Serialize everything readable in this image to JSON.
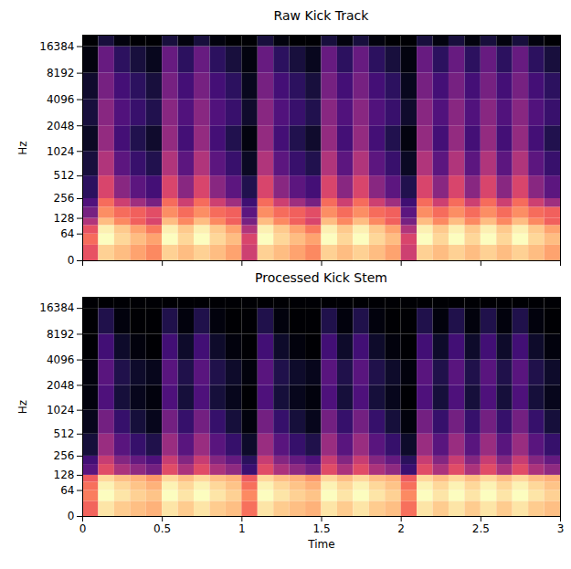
{
  "chart_data": [
    {
      "type": "heatmap",
      "title": "Raw Kick Track",
      "ylabel": "Hz",
      "log": "y",
      "color": "magma",
      "tick_labels": "y",
      "xlim": [
        0,
        3
      ],
      "xticks": [
        0,
        0.5,
        1,
        1.5,
        2,
        2.5,
        3
      ],
      "ylim": [
        0,
        22050
      ],
      "yticks": [
        0,
        64,
        128,
        256,
        512,
        1024,
        2048,
        4096,
        8192,
        16384
      ],
      "x_edges": [
        0,
        0.1,
        0.2,
        0.3,
        0.4,
        0.5,
        0.6,
        0.7,
        0.8,
        0.9,
        1.0,
        1.1,
        1.2,
        1.3,
        1.4,
        1.5,
        1.6,
        1.7,
        1.8,
        1.9,
        2.0,
        2.1,
        2.2,
        2.3,
        2.4,
        2.5,
        2.6,
        2.7,
        2.8,
        2.9,
        3.0
      ],
      "y_edges": [
        0,
        32,
        64,
        96,
        128,
        192,
        256,
        512,
        1024,
        2048,
        4096,
        8192,
        16384,
        22050
      ],
      "cells": [
        [
          -35,
          -15,
          -18,
          -22,
          -26,
          -15,
          -18,
          -15,
          -18,
          -22,
          -40,
          -15,
          -18,
          -22,
          -26,
          -15,
          -18,
          -15,
          -18,
          -22,
          -40,
          -15,
          -18,
          -15,
          -18,
          -15,
          -18,
          -15,
          -18,
          -22
        ],
        [
          -30,
          -8,
          -14,
          -18,
          -22,
          -8,
          -14,
          -8,
          -14,
          -18,
          -38,
          -8,
          -14,
          -18,
          -22,
          -8,
          -14,
          -8,
          -14,
          -18,
          -38,
          -8,
          -14,
          -8,
          -14,
          -8,
          -14,
          -8,
          -14,
          -18
        ],
        [
          -35,
          -10,
          -16,
          -22,
          -28,
          -10,
          -16,
          -10,
          -16,
          -22,
          -45,
          -10,
          -16,
          -22,
          -28,
          -10,
          -16,
          -10,
          -16,
          -22,
          -45,
          -10,
          -16,
          -10,
          -16,
          -10,
          -16,
          -10,
          -16,
          -22
        ],
        [
          -45,
          -18,
          -26,
          -32,
          -38,
          -18,
          -26,
          -18,
          -26,
          -32,
          -55,
          -18,
          -26,
          -32,
          -38,
          -18,
          -26,
          -18,
          -26,
          -32,
          -55,
          -18,
          -26,
          -18,
          -26,
          -18,
          -26,
          -18,
          -26,
          -32
        ],
        [
          -55,
          -25,
          -30,
          -32,
          -36,
          -25,
          -30,
          -25,
          -30,
          -32,
          -60,
          -25,
          -30,
          -32,
          -36,
          -25,
          -30,
          -25,
          -30,
          -32,
          -60,
          -25,
          -30,
          -25,
          -30,
          -25,
          -30,
          -25,
          -30,
          -32
        ],
        [
          -62,
          -30,
          -40,
          -48,
          -55,
          -30,
          -40,
          -30,
          -40,
          -48,
          -65,
          -30,
          -40,
          -48,
          -55,
          -30,
          -40,
          -30,
          -40,
          -48,
          -65,
          -30,
          -40,
          -30,
          -40,
          -30,
          -40,
          -30,
          -40,
          -48
        ],
        [
          -68,
          -38,
          -52,
          -60,
          -64,
          -38,
          -52,
          -38,
          -52,
          -60,
          -70,
          -38,
          -52,
          -60,
          -64,
          -38,
          -52,
          -38,
          -52,
          -60,
          -70,
          -38,
          -52,
          -38,
          -52,
          -38,
          -52,
          -38,
          -52,
          -60
        ],
        [
          -72,
          -45,
          -60,
          -66,
          -70,
          -45,
          -60,
          -45,
          -60,
          -66,
          -75,
          -45,
          -60,
          -66,
          -70,
          -45,
          -60,
          -45,
          -60,
          -66,
          -75,
          -45,
          -60,
          -45,
          -60,
          -45,
          -60,
          -45,
          -60,
          -66
        ],
        [
          -75,
          -50,
          -64,
          -70,
          -74,
          -50,
          -64,
          -50,
          -64,
          -70,
          -78,
          -50,
          -64,
          -70,
          -74,
          -50,
          -64,
          -50,
          -64,
          -70,
          -78,
          -50,
          -64,
          -50,
          -64,
          -50,
          -64,
          -50,
          -64,
          -70
        ],
        [
          -72,
          -52,
          -62,
          -66,
          -70,
          -52,
          -62,
          -52,
          -62,
          -66,
          -74,
          -52,
          -62,
          -66,
          -70,
          -52,
          -62,
          -52,
          -62,
          -66,
          -74,
          -52,
          -62,
          -52,
          -62,
          -52,
          -62,
          -52,
          -62,
          -66
        ],
        [
          -74,
          -55,
          -64,
          -68,
          -72,
          -55,
          -64,
          -55,
          -64,
          -68,
          -76,
          -55,
          -64,
          -68,
          -72,
          -55,
          -64,
          -55,
          -64,
          -68,
          -76,
          -55,
          -64,
          -55,
          -64,
          -55,
          -64,
          -55,
          -64,
          -68
        ],
        [
          -78,
          -58,
          -68,
          -72,
          -76,
          -58,
          -68,
          -58,
          -68,
          -72,
          -78,
          -58,
          -68,
          -72,
          -76,
          -58,
          -68,
          -58,
          -68,
          -72,
          -78,
          -58,
          -68,
          -58,
          -68,
          -58,
          -68,
          -58,
          -68,
          -72
        ],
        [
          -80,
          -72,
          -78,
          -80,
          -80,
          -72,
          -78,
          -72,
          -78,
          -80,
          -80,
          -72,
          -78,
          -80,
          -80,
          -72,
          -78,
          -72,
          -78,
          -80,
          -80,
          -72,
          -78,
          -72,
          -78,
          -72,
          -78,
          -72,
          -78,
          -80
        ]
      ]
    },
    {
      "type": "heatmap",
      "title": "Processed Kick Stem",
      "xlabel": "Time",
      "ylabel": "Hz",
      "log": "y",
      "color": "magma",
      "xlim": [
        0,
        3
      ],
      "xticks": [
        0,
        0.5,
        1,
        1.5,
        2,
        2.5,
        3
      ],
      "ylim": [
        0,
        22050
      ],
      "yticks": [
        0,
        64,
        128,
        256,
        512,
        1024,
        2048,
        4096,
        8192,
        16384
      ],
      "x_edges": [
        0,
        0.1,
        0.2,
        0.3,
        0.4,
        0.5,
        0.6,
        0.7,
        0.8,
        0.9,
        1.0,
        1.1,
        1.2,
        1.3,
        1.4,
        1.5,
        1.6,
        1.7,
        1.8,
        1.9,
        2.0,
        2.1,
        2.2,
        2.3,
        2.4,
        2.5,
        2.6,
        2.7,
        2.8,
        2.9,
        3.0
      ],
      "y_edges": [
        0,
        32,
        64,
        96,
        128,
        192,
        256,
        512,
        1024,
        2048,
        4096,
        8192,
        16384,
        22050
      ],
      "cells": [
        [
          -30,
          -10,
          -14,
          -16,
          -18,
          -10,
          -14,
          -10,
          -14,
          -16,
          -28,
          -10,
          -14,
          -16,
          -18,
          -10,
          -14,
          -10,
          -14,
          -16,
          -28,
          -10,
          -14,
          -10,
          -14,
          -10,
          -14,
          -10,
          -14,
          -16
        ],
        [
          -26,
          -6,
          -10,
          -13,
          -15,
          -6,
          -10,
          -6,
          -10,
          -13,
          -24,
          -6,
          -10,
          -13,
          -15,
          -6,
          -10,
          -6,
          -10,
          -13,
          -24,
          -6,
          -10,
          -6,
          -10,
          -6,
          -10,
          -6,
          -10,
          -13
        ],
        [
          -28,
          -8,
          -12,
          -15,
          -18,
          -8,
          -12,
          -8,
          -12,
          -15,
          -28,
          -8,
          -12,
          -15,
          -18,
          -8,
          -12,
          -8,
          -12,
          -15,
          -28,
          -8,
          -12,
          -8,
          -12,
          -8,
          -12,
          -8,
          -12,
          -15
        ],
        [
          -32,
          -12,
          -16,
          -18,
          -22,
          -12,
          -16,
          -12,
          -16,
          -18,
          -32,
          -12,
          -16,
          -18,
          -22,
          -12,
          -16,
          -12,
          -16,
          -18,
          -32,
          -12,
          -16,
          -12,
          -16,
          -12,
          -16,
          -12,
          -16,
          -18
        ],
        [
          -60,
          -35,
          -45,
          -50,
          -55,
          -35,
          -45,
          -35,
          -45,
          -50,
          -65,
          -35,
          -45,
          -50,
          -55,
          -35,
          -45,
          -35,
          -45,
          -50,
          -65,
          -35,
          -45,
          -35,
          -45,
          -35,
          -45,
          -35,
          -45,
          -50
        ],
        [
          -64,
          -40,
          -52,
          -58,
          -62,
          -40,
          -52,
          -40,
          -52,
          -58,
          -68,
          -40,
          -52,
          -58,
          -62,
          -40,
          -52,
          -40,
          -52,
          -58,
          -68,
          -40,
          -52,
          -40,
          -52,
          -40,
          -52,
          -40,
          -52,
          -58
        ],
        [
          -72,
          -48,
          -60,
          -66,
          -70,
          -48,
          -60,
          -48,
          -60,
          -66,
          -74,
          -48,
          -60,
          -66,
          -70,
          -48,
          -60,
          -48,
          -60,
          -66,
          -74,
          -48,
          -60,
          -48,
          -60,
          -48,
          -60,
          -48,
          -60,
          -66
        ],
        [
          -76,
          -55,
          -66,
          -72,
          -76,
          -55,
          -66,
          -55,
          -66,
          -72,
          -78,
          -55,
          -66,
          -72,
          -76,
          -55,
          -66,
          -55,
          -66,
          -72,
          -78,
          -55,
          -66,
          -55,
          -66,
          -55,
          -66,
          -55,
          -66,
          -72
        ],
        [
          -78,
          -62,
          -72,
          -76,
          -78,
          -62,
          -72,
          -62,
          -72,
          -76,
          -80,
          -62,
          -72,
          -76,
          -78,
          -62,
          -72,
          -62,
          -72,
          -76,
          -80,
          -62,
          -72,
          -62,
          -72,
          -62,
          -72,
          -62,
          -72,
          -76
        ],
        [
          -78,
          -60,
          -70,
          -74,
          -76,
          -60,
          -70,
          -60,
          -70,
          -74,
          -78,
          -60,
          -70,
          -74,
          -76,
          -60,
          -70,
          -60,
          -70,
          -74,
          -78,
          -60,
          -70,
          -60,
          -70,
          -60,
          -70,
          -60,
          -70,
          -74
        ],
        [
          -80,
          -64,
          -74,
          -78,
          -80,
          -64,
          -74,
          -64,
          -74,
          -78,
          -80,
          -64,
          -74,
          -78,
          -80,
          -64,
          -74,
          -64,
          -74,
          -78,
          -80,
          -64,
          -74,
          -64,
          -74,
          -64,
          -74,
          -64,
          -74,
          -78
        ],
        [
          -80,
          -70,
          -78,
          -80,
          -80,
          -70,
          -78,
          -70,
          -78,
          -80,
          -80,
          -70,
          -78,
          -80,
          -80,
          -70,
          -78,
          -70,
          -78,
          -80,
          -80,
          -70,
          -78,
          -70,
          -78,
          -70,
          -78,
          -70,
          -78,
          -80
        ],
        [
          -80,
          -80,
          -80,
          -80,
          -80,
          -80,
          -80,
          -80,
          -80,
          -80,
          -80,
          -80,
          -80,
          -80,
          -80,
          -80,
          -80,
          -80,
          -80,
          -80,
          -80,
          -80,
          -80,
          -80,
          -80,
          -80,
          -80,
          -80,
          -80,
          -80
        ]
      ]
    }
  ]
}
